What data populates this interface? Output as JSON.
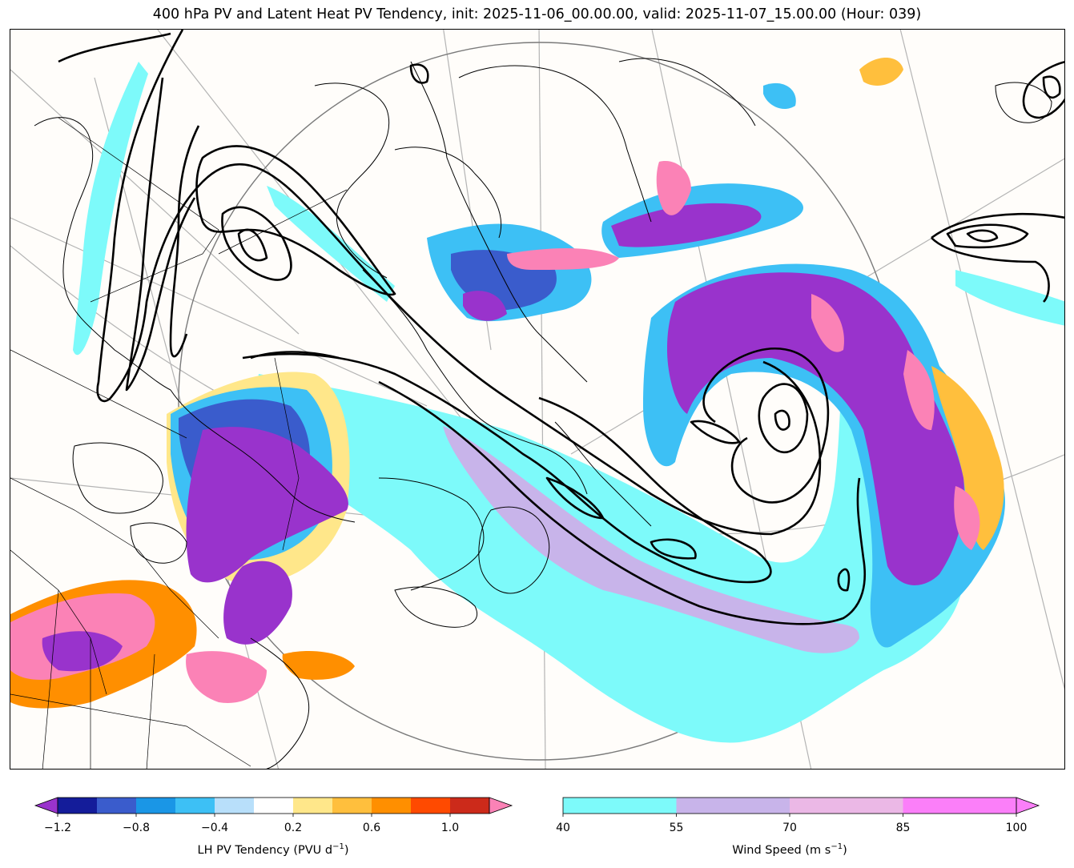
{
  "title": "400 hPa PV and Latent Heat PV Tendency, init: 2025-11-06_00.00.00, valid: 2025-11-07_15.00.00 (Hour: 039)",
  "colorbars": [
    {
      "label_main": "LH PV Tendency (PVU d",
      "label_sup": "−1",
      "label_end": ")",
      "ticks": [
        "−1.2",
        "−0.8",
        "−0.4",
        "0.2",
        "0.6",
        "1.0"
      ],
      "colors": [
        "#9933cc",
        "#141c9a",
        "#3a5ccc",
        "#1a96e6",
        "#3dc0f5",
        "#b8dffa",
        "#ffffff",
        "#ffe78a",
        "#ffbf3d",
        "#ff8f00",
        "#ff4a00",
        "#cc2a1a",
        "#fb82b6"
      ]
    },
    {
      "label_main": "Wind Speed (m s",
      "label_sup": "−1",
      "label_end": ")",
      "ticks": [
        "40",
        "55",
        "70",
        "85",
        "100"
      ],
      "colors": [
        "#7dfafa",
        "#c8b4ea",
        "#ebb8e6",
        "#fb7ff9"
      ]
    }
  ],
  "legend_colors": {
    "pv_contour": "#000000",
    "coast": "#000000",
    "graticule": "#b4b4b4",
    "map_bg": "#fffdfa"
  }
}
